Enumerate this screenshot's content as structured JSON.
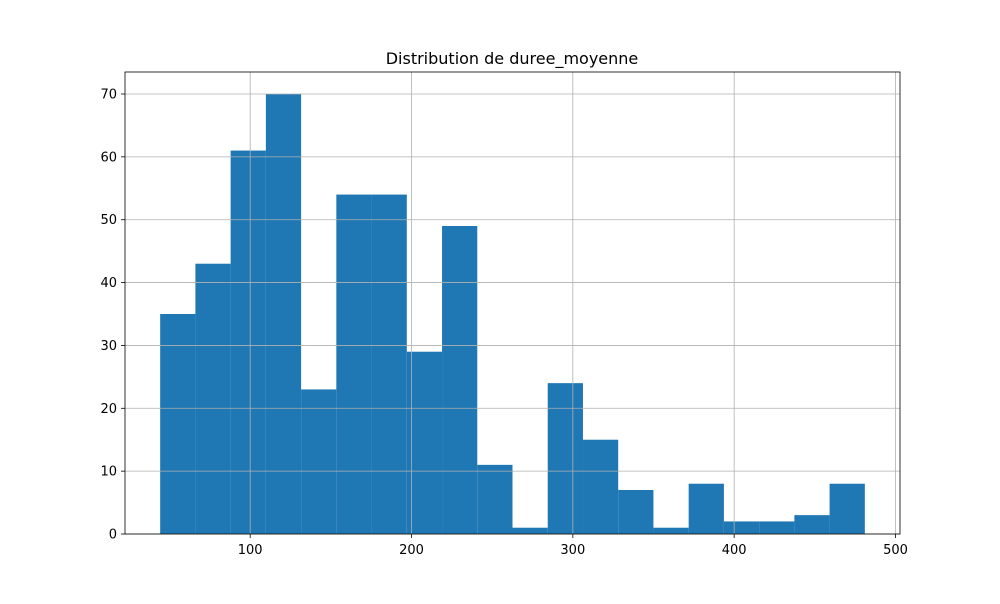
{
  "chart_data": {
    "type": "bar",
    "title": "Distribution de duree_moyenne",
    "xlabel": "",
    "ylabel": "",
    "bin_edges": [
      44.2,
      66.04,
      87.88,
      109.72,
      131.56,
      153.4,
      175.24,
      197.08,
      218.92,
      240.76,
      262.6,
      284.44,
      306.28,
      328.12,
      349.96,
      371.8,
      393.64,
      415.48,
      437.32,
      459.16,
      481.0
    ],
    "values": [
      35,
      43,
      61,
      70,
      23,
      54,
      54,
      29,
      49,
      11,
      1,
      24,
      15,
      7,
      1,
      8,
      2,
      2,
      3,
      8
    ],
    "xlim": [
      22.4,
      502.8
    ],
    "ylim": [
      0,
      73.5
    ],
    "xticks": [
      100,
      200,
      300,
      400,
      500
    ],
    "yticks": [
      0,
      10,
      20,
      30,
      40,
      50,
      60,
      70
    ],
    "grid": true,
    "colors": {
      "bar": "#1f77b4",
      "grid": "#b0b0b0",
      "axes": "#000000"
    }
  }
}
